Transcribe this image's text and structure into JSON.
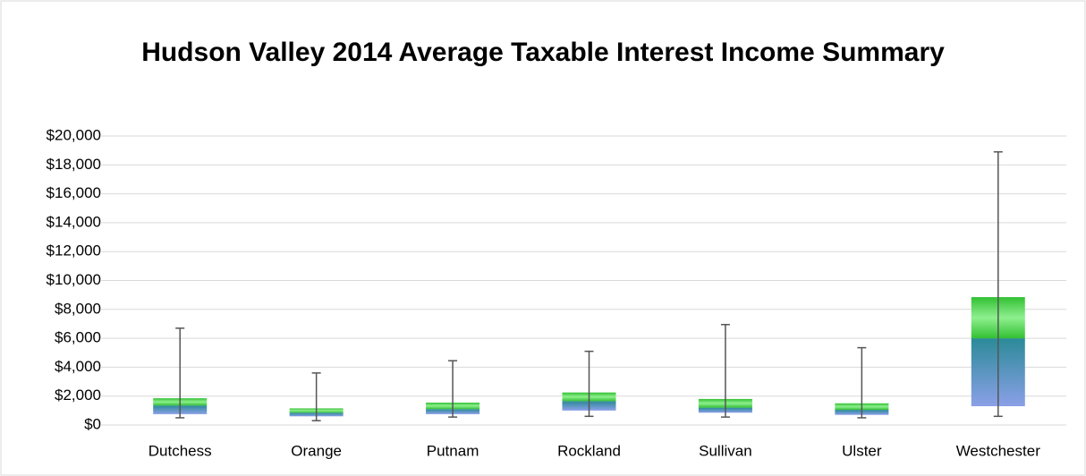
{
  "chart_data": {
    "type": "box",
    "title": "Hudson Valley 2014 Average Taxable Interest Income Summary",
    "categories": [
      "Dutchess",
      "Orange",
      "Putnam",
      "Rockland",
      "Sullivan",
      "Ulster",
      "Westchester"
    ],
    "min": [
      500,
      300,
      550,
      600,
      550,
      500,
      600
    ],
    "q1": [
      750,
      600,
      750,
      1000,
      850,
      700,
      1300
    ],
    "median": [
      1350,
      850,
      1100,
      1650,
      1200,
      1050,
      6000
    ],
    "q3": [
      1850,
      1150,
      1550,
      2250,
      1800,
      1500,
      8850
    ],
    "max": [
      6700,
      3600,
      4450,
      5100,
      6950,
      5350,
      18900
    ],
    "lower_colors": [
      "#2b8a98",
      "#8ba0e8"
    ],
    "upper_colors": [
      "#33c033",
      "#8ef08e",
      "#33c033"
    ],
    "whisker_color": "#555555",
    "ylim": [
      0,
      20000
    ],
    "yticks": [
      {
        "value": 0,
        "label": "$0"
      },
      {
        "value": 2000,
        "label": "$2,000"
      },
      {
        "value": 4000,
        "label": "$4,000"
      },
      {
        "value": 6000,
        "label": "$6,000"
      },
      {
        "value": 8000,
        "label": "$8,000"
      },
      {
        "value": 10000,
        "label": "$10,000"
      },
      {
        "value": 12000,
        "label": "$12,000"
      },
      {
        "value": 14000,
        "label": "$14,000"
      },
      {
        "value": 16000,
        "label": "$16,000"
      },
      {
        "value": 18000,
        "label": "$18,000"
      },
      {
        "value": 20000,
        "label": "$20,000"
      }
    ],
    "grid": true
  }
}
